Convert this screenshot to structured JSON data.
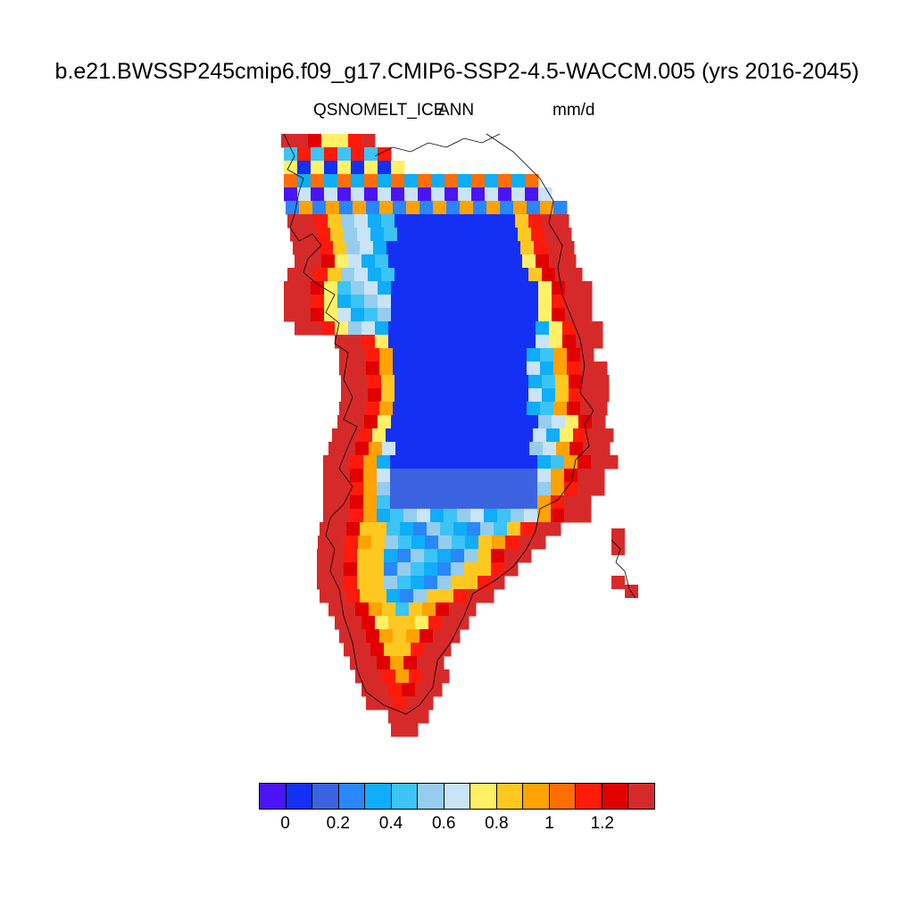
{
  "title": "b.e21.BWSSP245cmip6.f09_g17.CMIP6-SSP2-4.5-WACCM.005 (yrs 2016-2045)",
  "variable": "QSNOMELT_ICE",
  "statistic": "ANN",
  "units": "mm/d",
  "colorbar": {
    "colors": [
      "#4b14f5",
      "#1530f5",
      "#3b63e0",
      "#2a87fa",
      "#0fadfa",
      "#3cc4f7",
      "#96cdee",
      "#c8e4f6",
      "#fff066",
      "#ffc820",
      "#ffa204",
      "#ff6e04",
      "#ff1a0a",
      "#e10000",
      "#d62a2a"
    ],
    "tick_labels": [
      "0",
      "0.2",
      "0.4",
      "0.6",
      "0.8",
      "1",
      "1.2"
    ]
  },
  "map": {
    "region": "Greenland",
    "legend_range": [
      0,
      1.4
    ]
  }
}
